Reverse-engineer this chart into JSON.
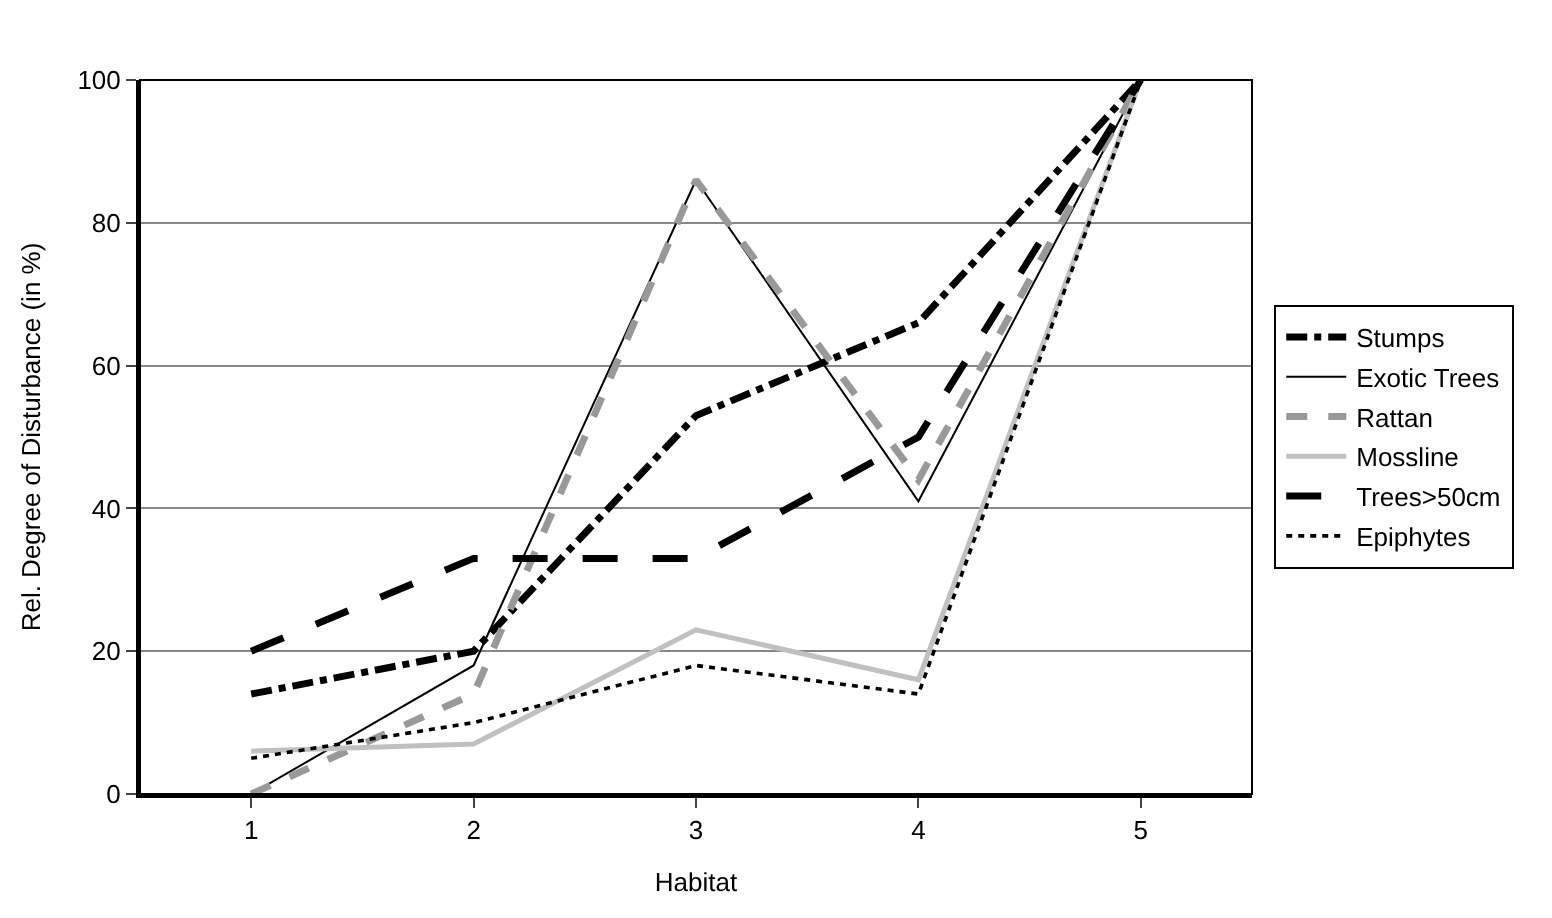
{
  "chart_data": {
    "type": "line",
    "xlabel": "Habitat",
    "ylabel": "Rel. Degree of Disturbance (in %)",
    "categories": [
      "1",
      "2",
      "3",
      "4",
      "5"
    ],
    "ylim": [
      0,
      100
    ],
    "yticks": [
      0,
      20,
      40,
      60,
      80,
      100
    ],
    "grid": "y",
    "legend": "right",
    "marker": "none",
    "series": [
      {
        "name": "Stumps",
        "color": "#000000",
        "line_style": "dashed",
        "values": [
          14,
          20,
          53,
          66,
          100
        ]
      },
      {
        "name": "Exotic Trees",
        "color": "#000000",
        "line_style": "solid",
        "values": [
          0,
          18,
          86,
          41,
          100
        ]
      },
      {
        "name": "Rattan",
        "color": "#999999",
        "line_style": "dashed",
        "values": [
          0,
          14,
          86,
          44,
          100
        ]
      },
      {
        "name": "Mossline",
        "color": "#c0c0c0",
        "line_style": "solid",
        "values": [
          6,
          7,
          23,
          16,
          100
        ]
      },
      {
        "name": "Trees>50cm",
        "color": "#000000",
        "line_style": "dashed",
        "values": [
          20,
          33,
          33,
          50,
          100
        ]
      },
      {
        "name": "Epiphytes",
        "color": "#000000",
        "line_style": "dotted",
        "values": [
          5,
          10,
          18,
          14,
          100
        ]
      }
    ]
  }
}
